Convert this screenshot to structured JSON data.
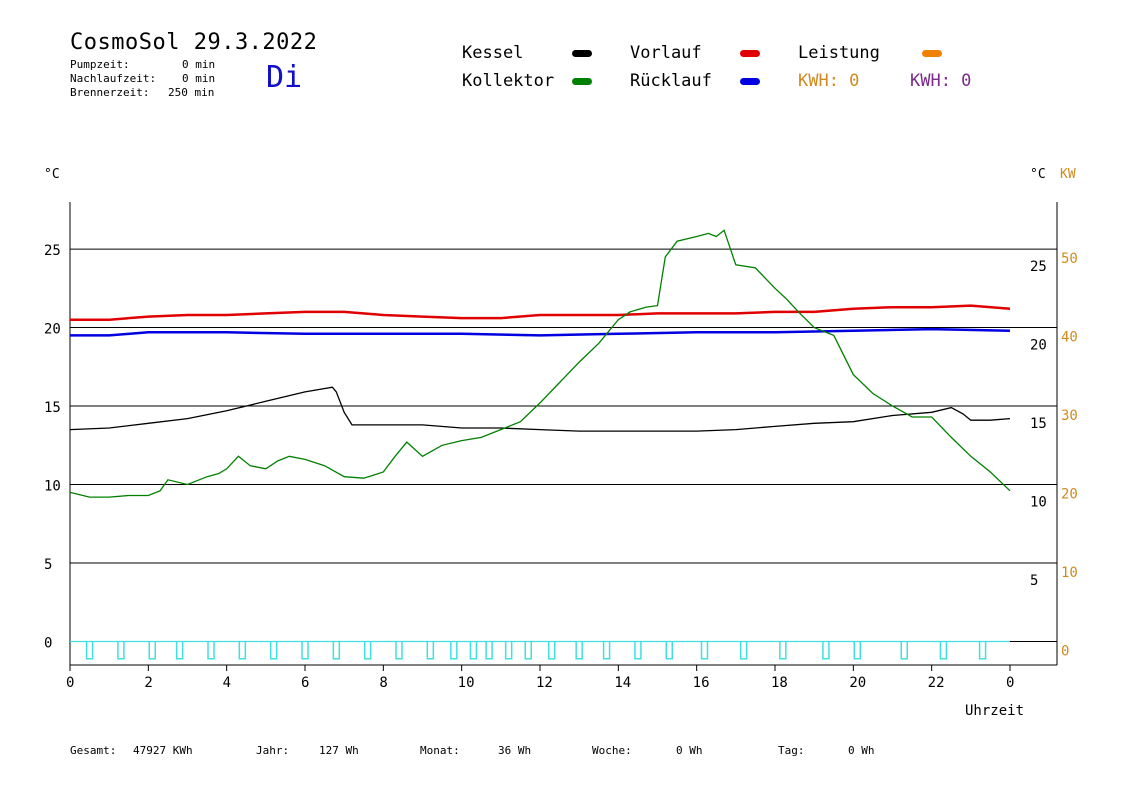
{
  "header": {
    "title": "CosmoSol 29.3.2022",
    "weekday": "Di",
    "stats": [
      {
        "label": "Pumpzeit:",
        "value": "0 min"
      },
      {
        "label": "Nachlaufzeit:",
        "value": "0 min"
      },
      {
        "label": "Brennerzeit:",
        "value": "250 min"
      }
    ]
  },
  "legend": {
    "items": [
      {
        "label": "Kessel",
        "color": "#000000"
      },
      {
        "label": "Vorlauf",
        "color": "#e00000"
      },
      {
        "label": "Leistung",
        "color": "#f08000"
      },
      {
        "label": "Kollektor",
        "color": "#008000"
      },
      {
        "label": "Rücklauf",
        "color": "#0000e0"
      }
    ],
    "kwh_orange": "KWH: 0",
    "kwh_purple": "KWH: 0",
    "kwh_orange_color": "#d08a20",
    "kwh_purple_color": "#7a2a8a"
  },
  "footer": {
    "gesamt_label": "Gesamt:",
    "gesamt_value": "47927 KWh",
    "jahr_label": "Jahr:",
    "jahr_value": "127 Wh",
    "monat_label": "Monat:",
    "monat_value": "36 Wh",
    "woche_label": "Woche:",
    "woche_value": "0 Wh",
    "tag_label": "Tag:",
    "tag_value": "0 Wh"
  },
  "chart_data": {
    "type": "line",
    "xlabel": "Uhrzeit",
    "ylabel_left": "°C",
    "ylabel_right": "°C",
    "ylabel_right2": "KW",
    "x_ticks": [
      "0",
      "2",
      "4",
      "6",
      "8",
      "10",
      "12",
      "14",
      "16",
      "18",
      "20",
      "22",
      "0"
    ],
    "xlim": [
      0,
      24
    ],
    "y_left_ticks": [
      "0",
      "5",
      "10",
      "15",
      "20",
      "25"
    ],
    "y_left_lim": [
      -1.5,
      28
    ],
    "y_right_ticks": [
      "5",
      "10",
      "15",
      "20",
      "25"
    ],
    "y_right2_ticks": [
      "0",
      "10",
      "20",
      "30",
      "40",
      "50"
    ],
    "grid": "horizontal",
    "series": [
      {
        "name": "Kessel",
        "color": "#000000",
        "x": [
          0,
          1,
          2,
          3,
          4,
          5,
          6,
          6.7,
          6.8,
          7.0,
          7.2,
          8,
          9,
          10,
          11,
          12,
          13,
          14,
          15,
          16,
          17,
          18,
          19,
          20,
          21,
          22,
          22.5,
          22.8,
          23,
          23.5,
          24
        ],
        "y": [
          13.5,
          13.6,
          13.9,
          14.2,
          14.7,
          15.3,
          15.9,
          16.2,
          15.9,
          14.6,
          13.8,
          13.8,
          13.8,
          13.6,
          13.6,
          13.5,
          13.4,
          13.4,
          13.4,
          13.4,
          13.5,
          13.7,
          13.9,
          14.0,
          14.4,
          14.6,
          14.9,
          14.5,
          14.1,
          14.1,
          14.2
        ]
      },
      {
        "name": "Vorlauf",
        "color": "#e00000",
        "x": [
          0,
          1,
          2,
          3,
          4,
          5,
          6,
          7,
          8,
          9,
          10,
          11,
          12,
          13,
          14,
          15,
          16,
          17,
          18,
          19,
          20,
          21,
          22,
          23,
          24
        ],
        "y": [
          20.5,
          20.5,
          20.7,
          20.8,
          20.8,
          20.9,
          21.0,
          21.0,
          20.8,
          20.7,
          20.6,
          20.6,
          20.8,
          20.8,
          20.8,
          20.9,
          20.9,
          20.9,
          21.0,
          21.0,
          21.2,
          21.3,
          21.3,
          21.4,
          21.2
        ]
      },
      {
        "name": "Rücklauf",
        "color": "#0000e0",
        "x": [
          0,
          1,
          2,
          4,
          6,
          8,
          10,
          12,
          14,
          16,
          18,
          20,
          22,
          24
        ],
        "y": [
          19.5,
          19.5,
          19.7,
          19.7,
          19.6,
          19.6,
          19.6,
          19.5,
          19.6,
          19.7,
          19.7,
          19.8,
          19.9,
          19.8
        ]
      },
      {
        "name": "Kollektor",
        "color": "#008000",
        "x": [
          0,
          0.5,
          1,
          1.5,
          2,
          2.3,
          2.5,
          3,
          3.5,
          3.8,
          4,
          4.3,
          4.6,
          5,
          5.3,
          5.6,
          6,
          6.5,
          7,
          7.5,
          8,
          8.3,
          8.6,
          9,
          9.5,
          10,
          10.5,
          11,
          11.5,
          12,
          12.5,
          13,
          13.5,
          14,
          14.3,
          14.7,
          15,
          15.2,
          15.5,
          16,
          16.3,
          16.5,
          16.7,
          17,
          17.5,
          18,
          18.3,
          18.6,
          19,
          19.5,
          20,
          20.5,
          21,
          21.5,
          22,
          22.5,
          23,
          23.5,
          24
        ],
        "y": [
          9.5,
          9.2,
          9.2,
          9.3,
          9.3,
          9.6,
          10.3,
          10.0,
          10.5,
          10.7,
          11.0,
          11.8,
          11.2,
          11.0,
          11.5,
          11.8,
          11.6,
          11.2,
          10.5,
          10.4,
          10.8,
          11.8,
          12.7,
          11.8,
          12.5,
          12.8,
          13.0,
          13.5,
          14.0,
          15.2,
          16.5,
          17.8,
          19.0,
          20.5,
          21.0,
          21.3,
          21.4,
          24.5,
          25.5,
          25.8,
          26.0,
          25.8,
          26.2,
          24.0,
          23.8,
          22.5,
          21.8,
          21.0,
          20.0,
          19.5,
          17.0,
          15.8,
          15.0,
          14.3,
          14.3,
          13.0,
          11.8,
          10.8,
          9.6
        ]
      },
      {
        "name": "Leistung",
        "color": "#40e0e0",
        "x": [
          0,
          24
        ],
        "y": [
          0,
          0
        ]
      }
    ],
    "pump_pulses_x": [
      0.5,
      1.3,
      2.1,
      2.8,
      3.6,
      4.4,
      5.2,
      6.0,
      6.8,
      7.6,
      8.4,
      9.2,
      9.8,
      10.3,
      10.7,
      11.2,
      11.7,
      12.3,
      13.0,
      13.7,
      14.5,
      15.3,
      16.2,
      17.2,
      18.2,
      19.3,
      20.1,
      21.3,
      22.3,
      23.3
    ],
    "pump_pulse_depth": -1.1
  }
}
